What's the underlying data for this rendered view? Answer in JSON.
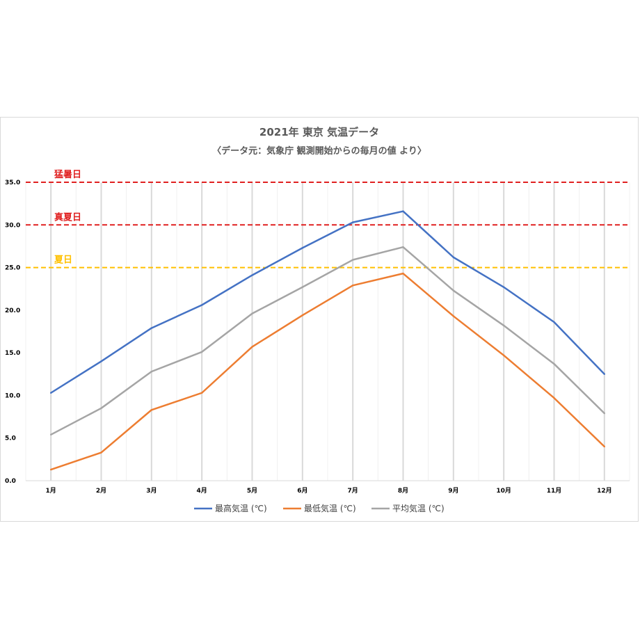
{
  "chart_data": {
    "type": "line",
    "title": "2021年 東京 気温データ",
    "subtitle": "〈データ元：気象庁 観測開始からの毎月の値 より〉",
    "categories": [
      "1月",
      "2月",
      "3月",
      "4月",
      "5月",
      "6月",
      "7月",
      "8月",
      "9月",
      "10月",
      "11月",
      "12月"
    ],
    "ylim": [
      0,
      35
    ],
    "yticks": [
      "0.0",
      "5.0",
      "10.0",
      "15.0",
      "20.0",
      "25.0",
      "30.0",
      "35.0"
    ],
    "grid": "vertical",
    "legend_position": "bottom",
    "series": [
      {
        "name": "最高気温 (℃)",
        "color": "#4472c4",
        "values": [
          10.3,
          14.0,
          17.9,
          20.6,
          24.1,
          27.3,
          30.3,
          31.6,
          26.2,
          22.7,
          18.6,
          12.5
        ]
      },
      {
        "name": "最低気温 (℃)",
        "color": "#ed7d31",
        "values": [
          1.3,
          3.3,
          8.3,
          10.3,
          15.7,
          19.4,
          22.9,
          24.3,
          19.3,
          14.7,
          9.7,
          4.0
        ]
      },
      {
        "name": "平均気温 (℃)",
        "color": "#a5a5a5",
        "values": [
          5.4,
          8.5,
          12.8,
          15.1,
          19.6,
          22.7,
          25.9,
          27.4,
          22.3,
          18.2,
          13.7,
          7.9
        ]
      }
    ],
    "reference_lines": [
      {
        "label": "猛暑日",
        "value": 35,
        "color": "#e02020"
      },
      {
        "label": "真夏日",
        "value": 30,
        "color": "#e02020"
      },
      {
        "label": "夏日",
        "value": 25,
        "color": "#ffc000"
      }
    ]
  }
}
